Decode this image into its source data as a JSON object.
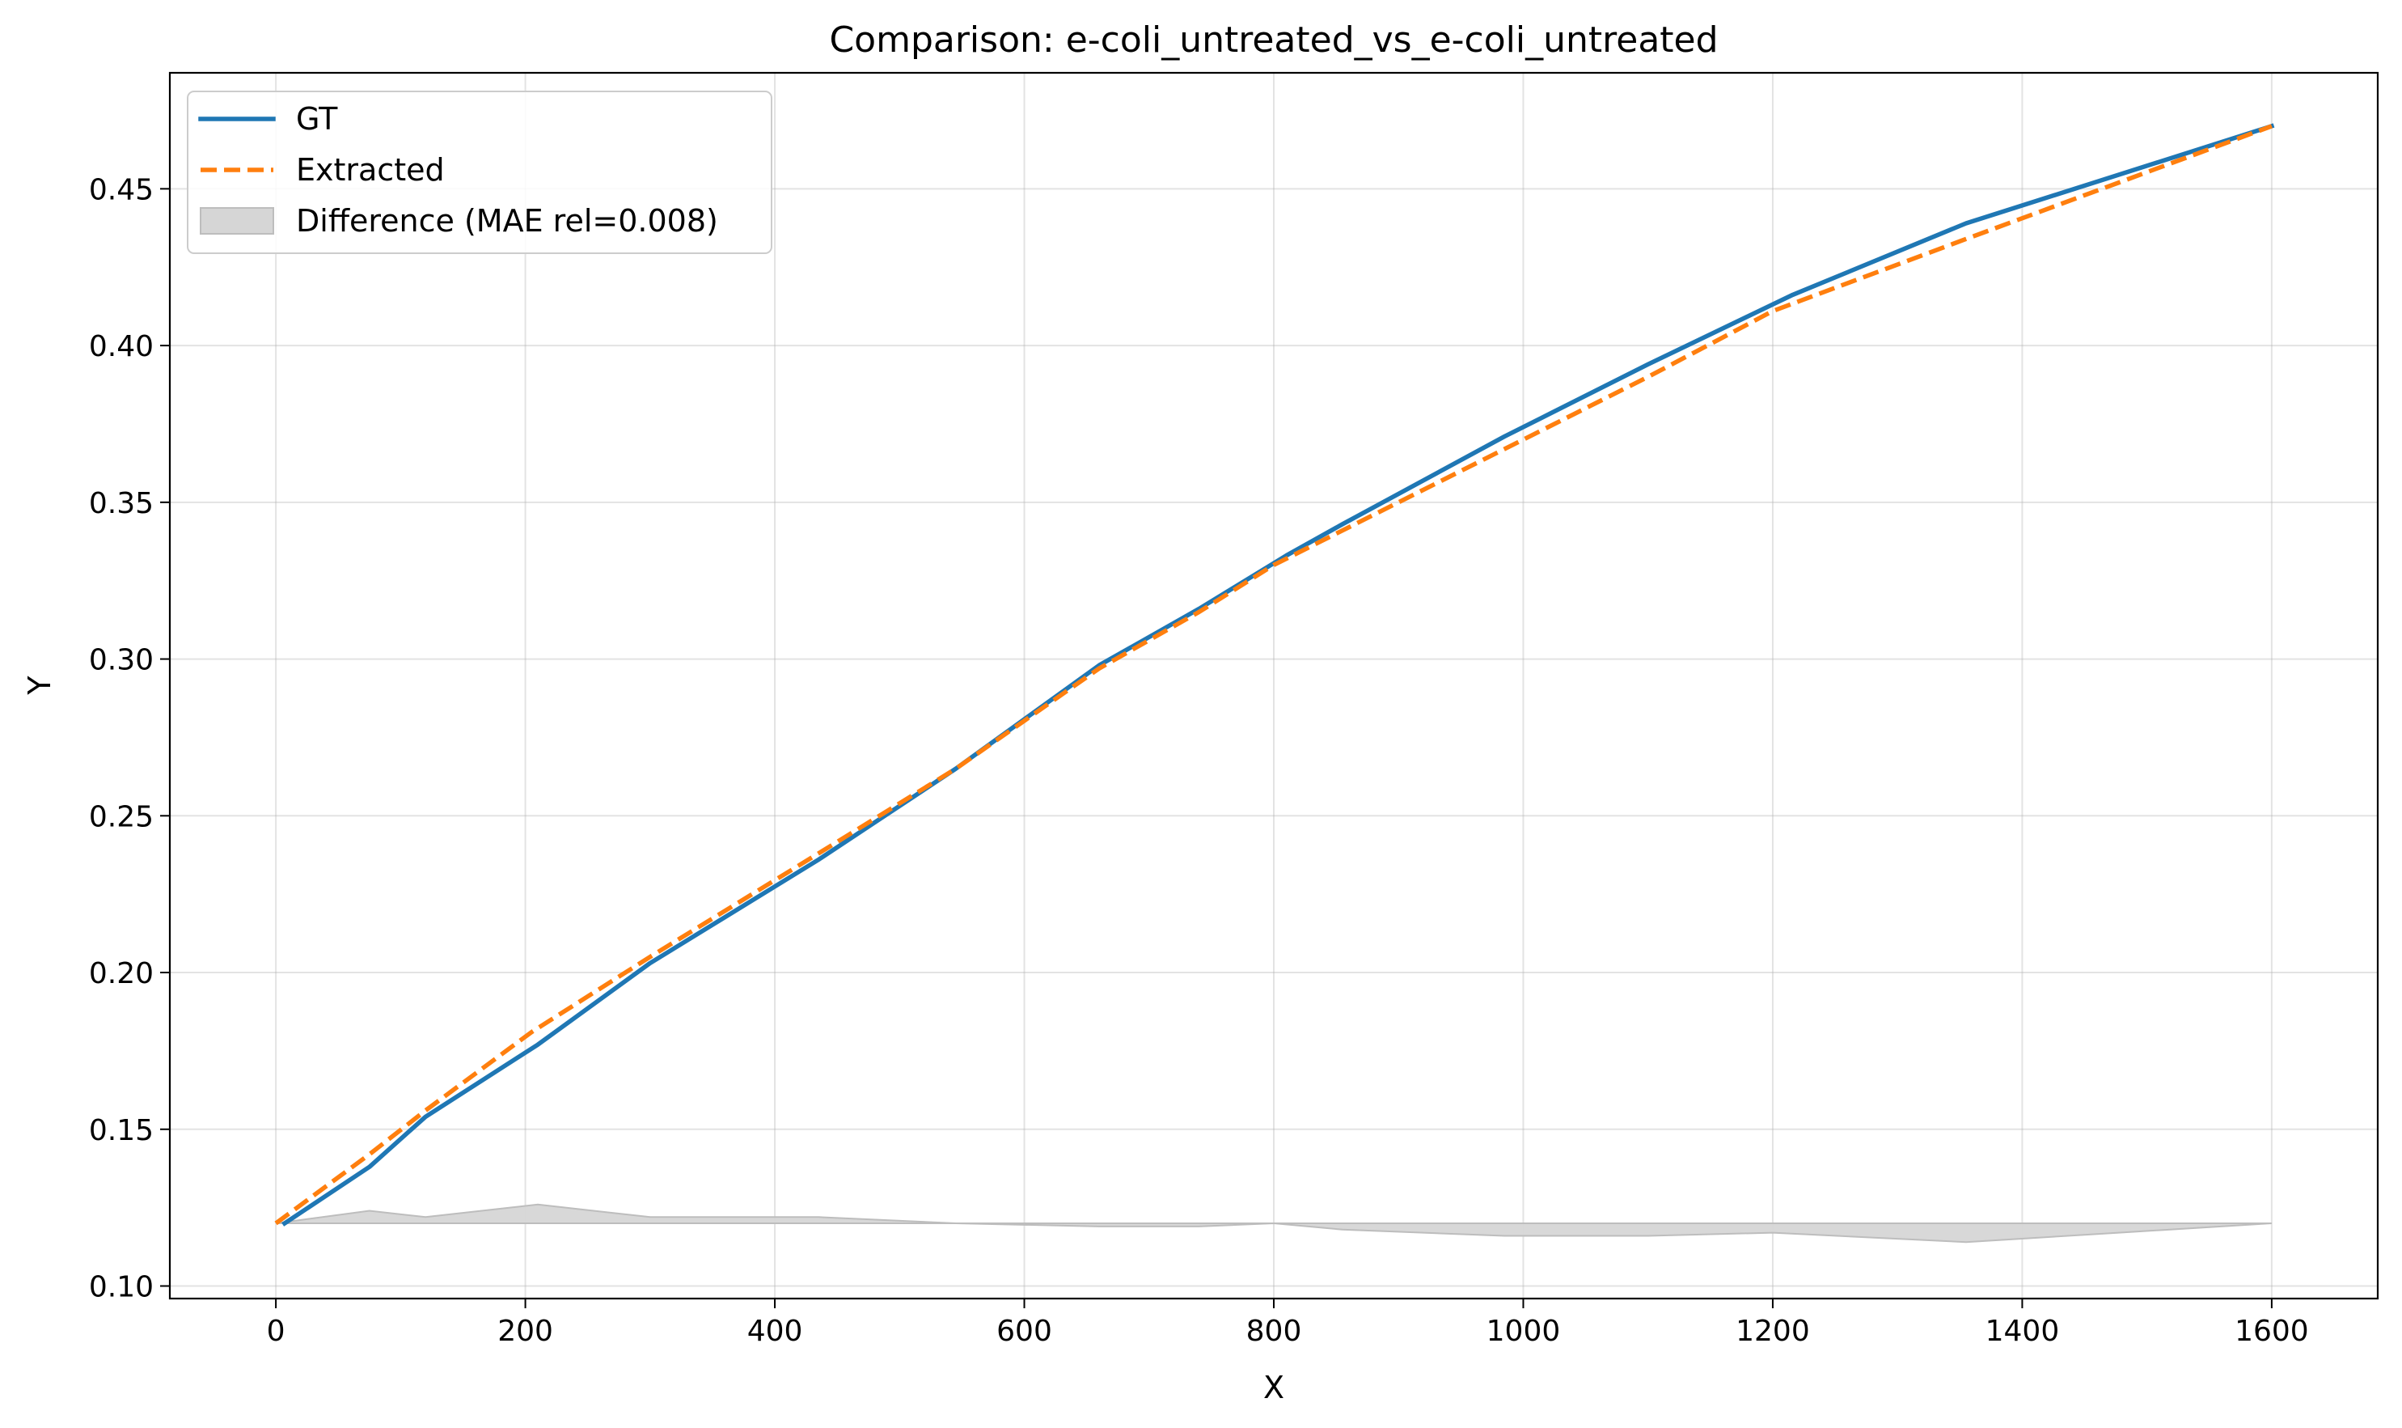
{
  "chart_data": {
    "type": "line",
    "title": "Comparison: e-coli_untreated_vs_e-coli_untreated",
    "xlabel": "X",
    "ylabel": "Y",
    "xlim": [
      -85,
      1685
    ],
    "ylim": [
      0.096,
      0.487
    ],
    "xticks": [
      0,
      200,
      400,
      600,
      800,
      1000,
      1200,
      1400,
      1600
    ],
    "yticks": [
      0.1,
      0.15,
      0.2,
      0.25,
      0.3,
      0.35,
      0.4,
      0.45
    ],
    "xtick_labels": [
      "0",
      "200",
      "400",
      "600",
      "800",
      "1000",
      "1200",
      "1400",
      "1600"
    ],
    "ytick_labels": [
      "0.10",
      "0.15",
      "0.20",
      "0.25",
      "0.30",
      "0.35",
      "0.40",
      "0.45"
    ],
    "grid": true,
    "legend_position": "top-left",
    "series": [
      {
        "name": "GT",
        "style": "solid",
        "color": "#1f77b4",
        "x": [
          7,
          75,
          120,
          210,
          300,
          435,
          545,
          660,
          740,
          810,
          855,
          985,
          1100,
          1215,
          1355,
          1600
        ],
        "y": [
          0.12,
          0.138,
          0.154,
          0.177,
          0.203,
          0.236,
          0.265,
          0.298,
          0.316,
          0.333,
          0.343,
          0.371,
          0.394,
          0.416,
          0.439,
          0.47
        ]
      },
      {
        "name": "Extracted",
        "style": "dashed",
        "color": "#ff7f0e",
        "x": [
          0,
          75,
          120,
          205,
          300,
          435,
          545,
          660,
          740,
          800,
          855,
          985,
          1100,
          1200,
          1355,
          1600
        ],
        "y": [
          0.12,
          0.142,
          0.156,
          0.181,
          0.205,
          0.238,
          0.265,
          0.297,
          0.315,
          0.33,
          0.341,
          0.367,
          0.39,
          0.411,
          0.434,
          0.47
        ]
      }
    ],
    "difference": {
      "name": "Difference (MAE rel=0.008)",
      "color": "#d6d6d6",
      "edge_color": "#bdbdbd",
      "baseline": 0.12,
      "x": [
        0,
        75,
        120,
        210,
        300,
        435,
        545,
        660,
        740,
        800,
        855,
        985,
        1100,
        1200,
        1355,
        1600
      ],
      "y": [
        0.12,
        0.124,
        0.122,
        0.126,
        0.122,
        0.122,
        0.12,
        0.119,
        0.119,
        0.12,
        0.118,
        0.116,
        0.116,
        0.117,
        0.114,
        0.12
      ]
    }
  }
}
